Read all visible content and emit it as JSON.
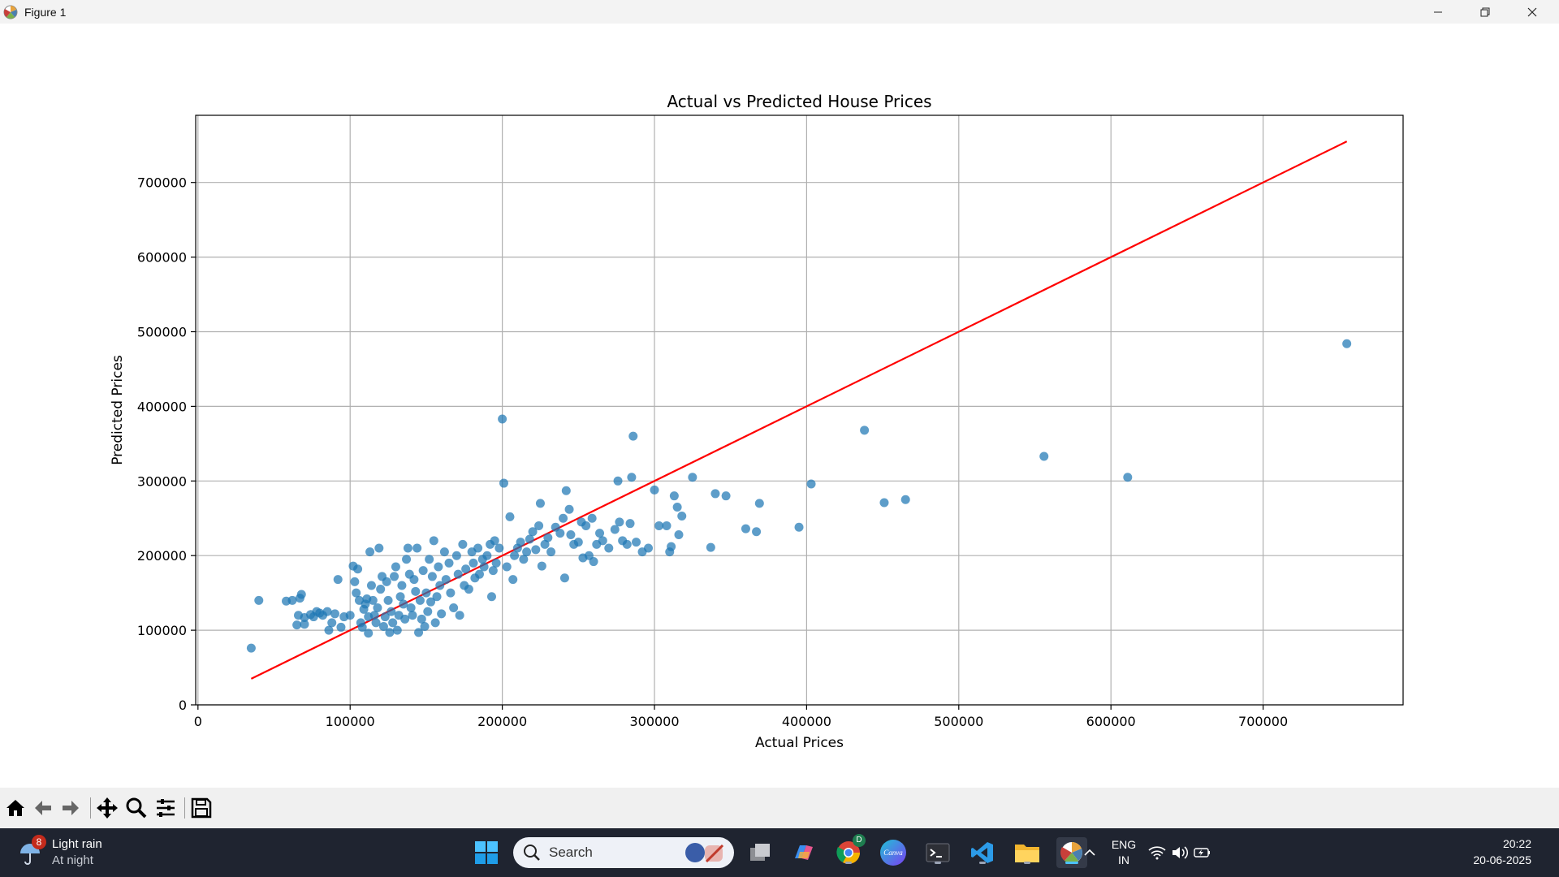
{
  "window": {
    "title": "Figure 1"
  },
  "toolbar": {
    "buttons": [
      "home-icon",
      "back-arrow-icon",
      "forward-arrow-icon",
      "pan-move-icon",
      "zoom-magnifier-icon",
      "configure-subplots-icon",
      "save-floppy-icon"
    ]
  },
  "chart_data": {
    "type": "scatter",
    "title": "Actual vs Predicted House Prices",
    "xlabel": "Actual Prices",
    "ylabel": "Predicted Prices",
    "xlim": [
      -1500,
      792000
    ],
    "ylim": [
      0,
      790000
    ],
    "xticks": [
      0,
      100000,
      200000,
      300000,
      400000,
      500000,
      600000,
      700000
    ],
    "yticks": [
      0,
      100000,
      200000,
      300000,
      400000,
      500000,
      600000,
      700000
    ],
    "xtick_labels": [
      "0",
      "100000",
      "200000",
      "300000",
      "400000",
      "500000",
      "600000",
      "700000"
    ],
    "ytick_labels": [
      "0",
      "100000",
      "200000",
      "300000",
      "400000",
      "500000",
      "600000",
      "700000"
    ],
    "grid": true,
    "point_color": "#1f77b4",
    "line_color": "#ff0000",
    "reference_line": {
      "x": [
        35000,
        755000
      ],
      "y": [
        35000,
        755000
      ]
    },
    "points": [
      [
        35000,
        76000
      ],
      [
        40000,
        140000
      ],
      [
        58000,
        139000
      ],
      [
        62000,
        140000
      ],
      [
        65000,
        107000
      ],
      [
        66000,
        120000
      ],
      [
        67000,
        143000
      ],
      [
        68000,
        148000
      ],
      [
        70000,
        108000
      ],
      [
        70000,
        117000
      ],
      [
        74000,
        121000
      ],
      [
        76000,
        118000
      ],
      [
        78000,
        125000
      ],
      [
        80000,
        123000
      ],
      [
        82000,
        120000
      ],
      [
        85000,
        125000
      ],
      [
        86000,
        100000
      ],
      [
        88000,
        110000
      ],
      [
        90000,
        122000
      ],
      [
        92000,
        168000
      ],
      [
        94000,
        104000
      ],
      [
        96000,
        118000
      ],
      [
        100000,
        120000
      ],
      [
        102000,
        186000
      ],
      [
        103000,
        165000
      ],
      [
        104000,
        150000
      ],
      [
        105000,
        182000
      ],
      [
        106000,
        140000
      ],
      [
        107000,
        110000
      ],
      [
        108000,
        104000
      ],
      [
        109000,
        128000
      ],
      [
        110000,
        135000
      ],
      [
        111000,
        142000
      ],
      [
        112000,
        96000
      ],
      [
        112000,
        118000
      ],
      [
        113000,
        205000
      ],
      [
        114000,
        160000
      ],
      [
        115000,
        140000
      ],
      [
        116000,
        120000
      ],
      [
        117000,
        110000
      ],
      [
        118000,
        130000
      ],
      [
        119000,
        210000
      ],
      [
        120000,
        155000
      ],
      [
        121000,
        172000
      ],
      [
        122000,
        105000
      ],
      [
        123000,
        118000
      ],
      [
        124000,
        165000
      ],
      [
        125000,
        140000
      ],
      [
        126000,
        97000
      ],
      [
        127000,
        125000
      ],
      [
        128000,
        110000
      ],
      [
        129000,
        172000
      ],
      [
        130000,
        185000
      ],
      [
        131000,
        100000
      ],
      [
        132000,
        120000
      ],
      [
        133000,
        145000
      ],
      [
        134000,
        160000
      ],
      [
        135000,
        135000
      ],
      [
        136000,
        115000
      ],
      [
        137000,
        195000
      ],
      [
        138000,
        210000
      ],
      [
        139000,
        175000
      ],
      [
        140000,
        130000
      ],
      [
        141000,
        120000
      ],
      [
        142000,
        168000
      ],
      [
        143000,
        152000
      ],
      [
        144000,
        210000
      ],
      [
        145000,
        97000
      ],
      [
        146000,
        140000
      ],
      [
        147000,
        115000
      ],
      [
        148000,
        180000
      ],
      [
        149000,
        105000
      ],
      [
        150000,
        150000
      ],
      [
        151000,
        125000
      ],
      [
        152000,
        195000
      ],
      [
        153000,
        138000
      ],
      [
        154000,
        172000
      ],
      [
        155000,
        220000
      ],
      [
        156000,
        110000
      ],
      [
        157000,
        145000
      ],
      [
        158000,
        185000
      ],
      [
        159000,
        160000
      ],
      [
        160000,
        122000
      ],
      [
        162000,
        205000
      ],
      [
        163000,
        168000
      ],
      [
        165000,
        190000
      ],
      [
        166000,
        150000
      ],
      [
        168000,
        130000
      ],
      [
        170000,
        200000
      ],
      [
        171000,
        175000
      ],
      [
        172000,
        120000
      ],
      [
        174000,
        215000
      ],
      [
        175000,
        160000
      ],
      [
        176000,
        182000
      ],
      [
        178000,
        155000
      ],
      [
        180000,
        205000
      ],
      [
        181000,
        190000
      ],
      [
        182000,
        170000
      ],
      [
        184000,
        210000
      ],
      [
        185000,
        175000
      ],
      [
        187000,
        195000
      ],
      [
        188000,
        185000
      ],
      [
        190000,
        200000
      ],
      [
        192000,
        215000
      ],
      [
        193000,
        145000
      ],
      [
        194000,
        180000
      ],
      [
        195000,
        220000
      ],
      [
        196000,
        190000
      ],
      [
        198000,
        210000
      ],
      [
        200000,
        383000
      ],
      [
        201000,
        297000
      ],
      [
        203000,
        185000
      ],
      [
        205000,
        252000
      ],
      [
        207000,
        168000
      ],
      [
        208000,
        200000
      ],
      [
        210000,
        210000
      ],
      [
        212000,
        218000
      ],
      [
        214000,
        195000
      ],
      [
        216000,
        205000
      ],
      [
        218000,
        222000
      ],
      [
        220000,
        232000
      ],
      [
        222000,
        208000
      ],
      [
        224000,
        240000
      ],
      [
        225000,
        270000
      ],
      [
        226000,
        186000
      ],
      [
        228000,
        215000
      ],
      [
        230000,
        224000
      ],
      [
        232000,
        205000
      ],
      [
        235000,
        238000
      ],
      [
        238000,
        230000
      ],
      [
        240000,
        250000
      ],
      [
        241000,
        170000
      ],
      [
        242000,
        287000
      ],
      [
        244000,
        262000
      ],
      [
        245000,
        228000
      ],
      [
        247000,
        215000
      ],
      [
        250000,
        218000
      ],
      [
        252000,
        245000
      ],
      [
        253000,
        197000
      ],
      [
        255000,
        240000
      ],
      [
        257000,
        200000
      ],
      [
        259000,
        250000
      ],
      [
        260000,
        192000
      ],
      [
        262000,
        215000
      ],
      [
        264000,
        230000
      ],
      [
        266000,
        220000
      ],
      [
        270000,
        210000
      ],
      [
        274000,
        235000
      ],
      [
        276000,
        300000
      ],
      [
        277000,
        245000
      ],
      [
        279000,
        220000
      ],
      [
        282000,
        215000
      ],
      [
        284000,
        243000
      ],
      [
        285000,
        305000
      ],
      [
        286000,
        360000
      ],
      [
        288000,
        218000
      ],
      [
        292000,
        205000
      ],
      [
        296000,
        210000
      ],
      [
        300000,
        288000
      ],
      [
        303000,
        240000
      ],
      [
        308000,
        240000
      ],
      [
        310000,
        205000
      ],
      [
        311000,
        212000
      ],
      [
        313000,
        280000
      ],
      [
        315000,
        265000
      ],
      [
        316000,
        228000
      ],
      [
        318000,
        253000
      ],
      [
        325000,
        305000
      ],
      [
        337000,
        211000
      ],
      [
        340000,
        283000
      ],
      [
        347000,
        280000
      ],
      [
        360000,
        236000
      ],
      [
        367000,
        232000
      ],
      [
        369000,
        270000
      ],
      [
        395000,
        238000
      ],
      [
        403000,
        296000
      ],
      [
        438000,
        368000
      ],
      [
        451000,
        271000
      ],
      [
        465000,
        275000
      ],
      [
        556000,
        333000
      ],
      [
        611000,
        305000
      ],
      [
        755000,
        484000
      ]
    ]
  },
  "taskbar": {
    "weather": {
      "badge": "8",
      "line1": "Light rain",
      "line2": "At night"
    },
    "search_placeholder": "Search",
    "apps": [
      "task-view-icon",
      "copilot-icon",
      "chrome-icon",
      "canva-icon",
      "terminal-icon",
      "vscode-icon",
      "file-explorer-icon",
      "matplotlib-figure-icon"
    ],
    "chrome_badge": "D",
    "canva_label": "Canva",
    "tray": {
      "lang1": "ENG",
      "lang2": "IN",
      "time": "20:22",
      "date": "20-06-2025"
    }
  }
}
